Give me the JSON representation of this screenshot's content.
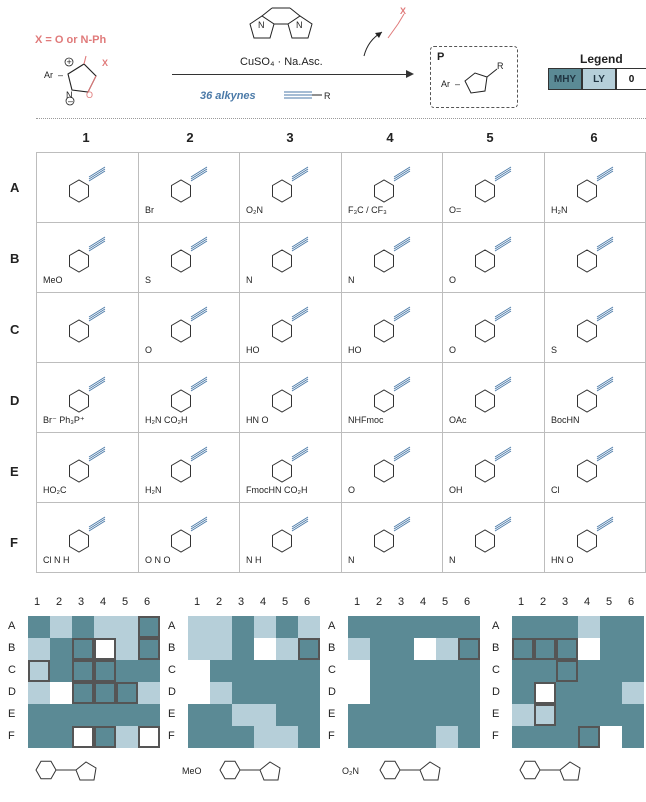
{
  "scheme": {
    "x_definition": "X = O or N-Ph",
    "reagent_label": "36 alkynes",
    "conditions": "CuSO₄ · Na.Asc.",
    "product_label": "P",
    "reactant_labels": {
      "ar": "Ar",
      "x": "X",
      "n": "N",
      "o": "O",
      "r": "R"
    },
    "byproduct_x": "X"
  },
  "legend": {
    "title": "Legend",
    "items": [
      {
        "label": "MHY",
        "color": "#5b8a95"
      },
      {
        "label": "LY",
        "color": "#b6cfd9"
      },
      {
        "label": "0",
        "color": "#ffffff"
      }
    ]
  },
  "grid": {
    "columns": [
      "1",
      "2",
      "3",
      "4",
      "5",
      "6"
    ],
    "rows": [
      "A",
      "B",
      "C",
      "D",
      "E",
      "F"
    ],
    "cells": {
      "A": [
        "",
        "Br",
        "O₂N",
        "F₃C / CF₃",
        "O=",
        "H₂N"
      ],
      "B": [
        "MeO",
        "S",
        "N",
        "N",
        "O",
        ""
      ],
      "C": [
        "",
        "O",
        "HO",
        "HO",
        "O",
        "S"
      ],
      "D": [
        "Br⁻ Ph₃P⁺",
        "H₂N CO₂H",
        "HN O",
        "NHFmoc",
        "OAc",
        "BocHN"
      ],
      "E": [
        "HO₂C",
        "H₂N",
        "FmocHN CO₂H",
        "O",
        "OH",
        "Cl"
      ],
      "F": [
        "Cl N H",
        "O N O",
        "N H",
        "N",
        "N",
        "HN O"
      ]
    }
  },
  "heatmaps": [
    {
      "name": "heatmap-1",
      "caption": "",
      "caption_label": "",
      "values": [
        [
          "M",
          "L",
          "M",
          "L",
          "L",
          "M"
        ],
        [
          "L",
          "M",
          "M",
          "0",
          "L",
          "M"
        ],
        [
          "L",
          "M",
          "M",
          "M",
          "M",
          "M"
        ],
        [
          "L",
          "0",
          "M",
          "M",
          "M",
          "L"
        ],
        [
          "M",
          "M",
          "M",
          "M",
          "M",
          "M"
        ],
        [
          "M",
          "M",
          "0",
          "M",
          "L",
          "0"
        ]
      ],
      "outlined": [
        [
          0,
          5
        ],
        [
          1,
          2
        ],
        [
          1,
          3
        ],
        [
          1,
          5
        ],
        [
          2,
          0
        ],
        [
          2,
          2
        ],
        [
          2,
          3
        ],
        [
          3,
          2
        ],
        [
          3,
          3
        ],
        [
          3,
          4
        ],
        [
          5,
          2
        ],
        [
          5,
          3
        ],
        [
          5,
          5
        ]
      ]
    },
    {
      "name": "heatmap-2",
      "caption": "MeO",
      "caption_label": "MeO",
      "values": [
        [
          "L",
          "L",
          "M",
          "L",
          "M",
          "L"
        ],
        [
          "L",
          "L",
          "M",
          "0",
          "L",
          "M"
        ],
        [
          "0",
          "M",
          "M",
          "M",
          "M",
          "M"
        ],
        [
          "0",
          "L",
          "M",
          "M",
          "M",
          "M"
        ],
        [
          "M",
          "M",
          "L",
          "L",
          "M",
          "M"
        ],
        [
          "M",
          "M",
          "M",
          "L",
          "L",
          "M"
        ]
      ],
      "outlined": [
        [
          1,
          5
        ]
      ]
    },
    {
      "name": "heatmap-3",
      "caption": "O₂N",
      "caption_label": "O₂N",
      "values": [
        [
          "M",
          "M",
          "M",
          "M",
          "M",
          "M"
        ],
        [
          "L",
          "M",
          "M",
          "0",
          "L",
          "M"
        ],
        [
          "0",
          "M",
          "M",
          "M",
          "M",
          "M"
        ],
        [
          "0",
          "M",
          "M",
          "M",
          "M",
          "M"
        ],
        [
          "M",
          "M",
          "M",
          "M",
          "M",
          "M"
        ],
        [
          "M",
          "M",
          "M",
          "M",
          "L",
          "M"
        ]
      ],
      "outlined": [
        [
          1,
          5
        ]
      ]
    },
    {
      "name": "heatmap-4",
      "caption": "",
      "caption_label": "",
      "values": [
        [
          "M",
          "M",
          "M",
          "L",
          "M",
          "M"
        ],
        [
          "M",
          "M",
          "M",
          "0",
          "M",
          "M"
        ],
        [
          "M",
          "M",
          "M",
          "M",
          "M",
          "M"
        ],
        [
          "M",
          "0",
          "M",
          "M",
          "M",
          "L"
        ],
        [
          "L",
          "L",
          "M",
          "M",
          "M",
          "M"
        ],
        [
          "M",
          "M",
          "M",
          "M",
          "0",
          "M"
        ]
      ],
      "outlined": [
        [
          1,
          0
        ],
        [
          1,
          1
        ],
        [
          1,
          2
        ],
        [
          2,
          2
        ],
        [
          3,
          1
        ],
        [
          4,
          1
        ],
        [
          5,
          3
        ]
      ]
    }
  ]
}
